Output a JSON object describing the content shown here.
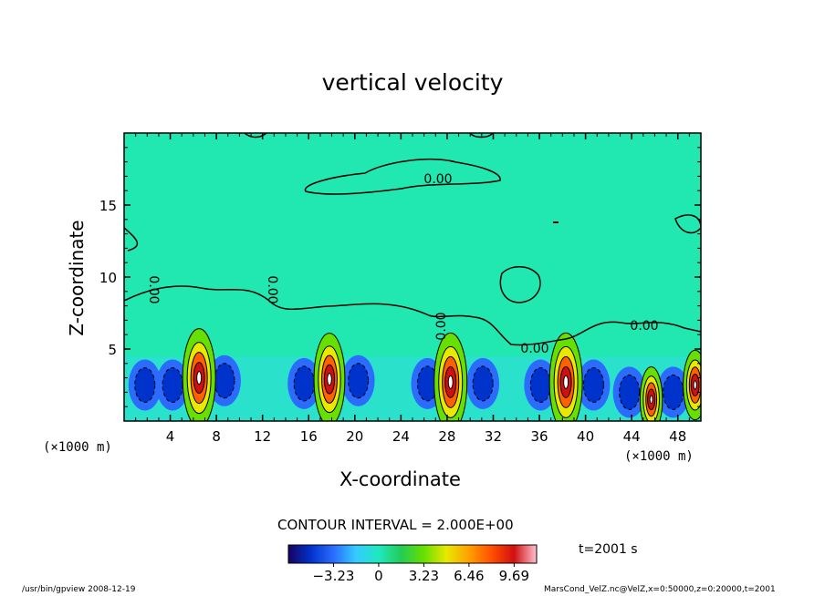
{
  "footer": {
    "left": "/usr/bin/gpview   2008-12-19",
    "right": "MarsCond_VelZ.nc@VelZ,x=0:50000,z=0:20000,t=2001"
  },
  "chart_data": {
    "type": "heatmap",
    "title": "vertical velocity",
    "xlabel": "X-coordinate",
    "ylabel": "Z-coordinate",
    "x_unit_left": "(×1000 m)",
    "x_unit_right": "(×1000 m)",
    "xlim": [
      0,
      50
    ],
    "ylim": [
      0,
      20
    ],
    "x_ticks": [
      4,
      8,
      12,
      16,
      20,
      24,
      28,
      32,
      36,
      40,
      44,
      48
    ],
    "x_tick_labels": [
      "4",
      "8",
      "12",
      "16",
      "20",
      "24",
      "28",
      "32",
      "36",
      "40",
      "44",
      "48"
    ],
    "y_ticks": [
      5,
      10,
      15
    ],
    "y_tick_labels": [
      "5",
      "10",
      "15"
    ],
    "contour_interval": "CONTOUR INTERVAL = 2.000E+00",
    "time": "t=2001 s",
    "contour_labels": [
      "0.00",
      "0.00",
      "0.00",
      "0.00",
      "0.00",
      "0.00"
    ],
    "colorbar": {
      "tick_values": [
        -3.23,
        0,
        3.23,
        6.46,
        9.69
      ],
      "tick_labels": [
        "−3.23",
        "0",
        "3.23",
        "6.46",
        "9.69"
      ],
      "range": [
        -6.46,
        11.3
      ],
      "colors": [
        "#1a0060",
        "#0033cc",
        "#2b6cff",
        "#33ccff",
        "#20e8c0",
        "#22cc55",
        "#66e000",
        "#e8e800",
        "#ffa000",
        "#ff5000",
        "#d01010",
        "#ffc0d0"
      ]
    },
    "updrafts": [
      {
        "x": 6.5,
        "z_center": 3.0,
        "peak": 9.7
      },
      {
        "x": 17.8,
        "z_center": 2.9,
        "peak": 9.0
      },
      {
        "x": 28.3,
        "z_center": 2.7,
        "peak": 9.7
      },
      {
        "x": 38.3,
        "z_center": 2.7,
        "peak": 9.7
      },
      {
        "x": 45.7,
        "z_center": 1.5,
        "peak": 6.0
      },
      {
        "x": 49.5,
        "z_center": 2.5,
        "peak": 6.5
      }
    ],
    "downdrafts": [
      {
        "x": 1.8,
        "z_center": 2.5,
        "min": -3.5
      },
      {
        "x": 4.2,
        "z_center": 2.5,
        "min": -3.0
      },
      {
        "x": 8.7,
        "z_center": 2.8,
        "min": -3.2
      },
      {
        "x": 15.6,
        "z_center": 2.6,
        "min": -2.8
      },
      {
        "x": 20.3,
        "z_center": 2.8,
        "min": -3.0
      },
      {
        "x": 26.3,
        "z_center": 2.6,
        "min": -3.2
      },
      {
        "x": 31.1,
        "z_center": 2.6,
        "min": -3.2
      },
      {
        "x": 36.1,
        "z_center": 2.5,
        "min": -3.0
      },
      {
        "x": 40.7,
        "z_center": 2.5,
        "min": -3.5
      },
      {
        "x": 43.8,
        "z_center": 2.0,
        "min": -2.5
      },
      {
        "x": 47.6,
        "z_center": 2.0,
        "min": -2.0
      }
    ]
  }
}
